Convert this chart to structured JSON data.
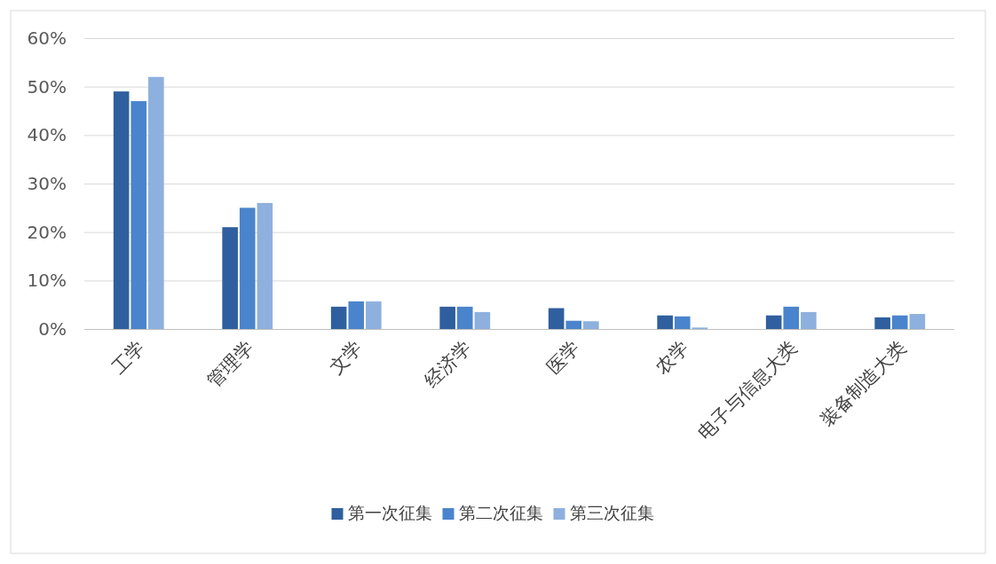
{
  "chart_data": {
    "type": "bar",
    "categories": [
      "工学",
      "管理学",
      "文学",
      "经济学",
      "医学",
      "农学",
      "电子与信息大类",
      "装备制造大类"
    ],
    "series": [
      {
        "name": "第一次征集",
        "color": "#2f5f9e",
        "values": [
          49,
          21,
          4.6,
          4.6,
          4.3,
          2.8,
          2.8,
          2.4
        ]
      },
      {
        "name": "第二次征集",
        "color": "#4a84cc",
        "values": [
          47,
          25,
          5.7,
          4.6,
          1.7,
          2.6,
          4.6,
          2.8
        ]
      },
      {
        "name": "第三次征集",
        "color": "#8eb0de",
        "values": [
          52,
          26,
          5.7,
          3.5,
          1.6,
          0.3,
          3.5,
          3.1
        ]
      }
    ],
    "ylim": [
      0,
      60
    ],
    "yticks": [
      {
        "value": 0,
        "label": "0%"
      },
      {
        "value": 10,
        "label": "10%"
      },
      {
        "value": 20,
        "label": "20%"
      },
      {
        "value": 30,
        "label": "30%"
      },
      {
        "value": 40,
        "label": "40%"
      },
      {
        "value": 50,
        "label": "50%"
      },
      {
        "value": 60,
        "label": "60%"
      }
    ],
    "grid": "y",
    "legend": "bottom"
  }
}
